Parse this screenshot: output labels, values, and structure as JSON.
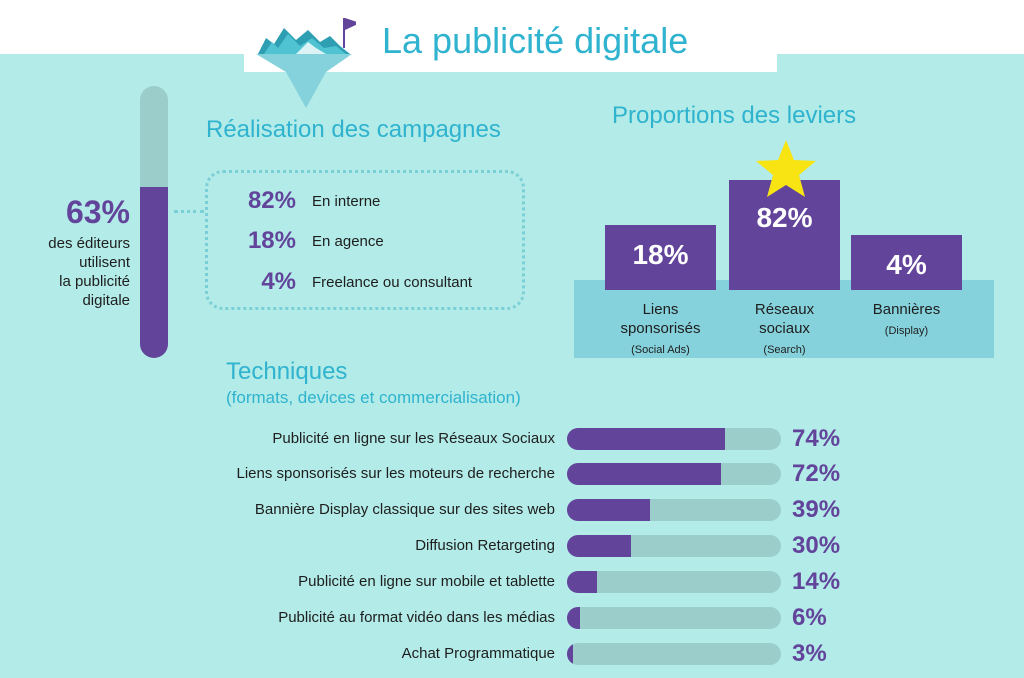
{
  "header": {
    "title": "La publicité digitale"
  },
  "colors": {
    "primary": "#62449b",
    "accent": "#2fb3cf",
    "background": "#b2ebe7",
    "track": "#9bcdcb",
    "base": "#86d2dc",
    "star": "#f9e413"
  },
  "icons": {
    "logo": "iceberg-flag-icon",
    "star": "star-icon"
  },
  "publishers": {
    "percent_value": 63,
    "percent_label": "63%",
    "description_lines": [
      "des éditeurs",
      "utilisent",
      "la publicité",
      "digitale"
    ]
  },
  "chart_data": [
    {
      "type": "table",
      "title": "Réalisation des campagnes",
      "rows": [
        {
          "value": "82%",
          "label": "En interne"
        },
        {
          "value": "18%",
          "label": "En agence"
        },
        {
          "value": "4%",
          "label": "Freelance ou consultant"
        }
      ]
    },
    {
      "type": "bar",
      "title": "Proportions des leviers",
      "categories": [
        {
          "lines": [
            "Liens",
            "sponsorisés"
          ],
          "sub": "(Social Ads)"
        },
        {
          "lines": [
            "Réseaux",
            "sociaux"
          ],
          "sub": "(Search)"
        },
        {
          "lines": [
            "Bannières"
          ],
          "sub": "(Display)"
        }
      ],
      "values": [
        18,
        82,
        4
      ],
      "value_labels": [
        "18%",
        "82%",
        "4%"
      ]
    },
    {
      "type": "bar",
      "title": "Techniques",
      "subtitle": "(formats, devices et commercialisation)",
      "categories": [
        "Publicité en ligne sur les Réseaux Sociaux",
        "Liens sponsorisés sur les moteurs de recherche",
        "Bannière Display classique sur des sites web",
        "Diffusion Retargeting",
        "Publicité en ligne sur mobile et tablette",
        "Publicité au format vidéo dans les médias",
        "Achat Programmatique"
      ],
      "values": [
        74,
        72,
        39,
        30,
        14,
        6,
        3
      ],
      "value_labels": [
        "74%",
        "72%",
        "39%",
        "30%",
        "14%",
        "6%",
        "3%"
      ],
      "xlim": [
        0,
        100
      ]
    }
  ]
}
